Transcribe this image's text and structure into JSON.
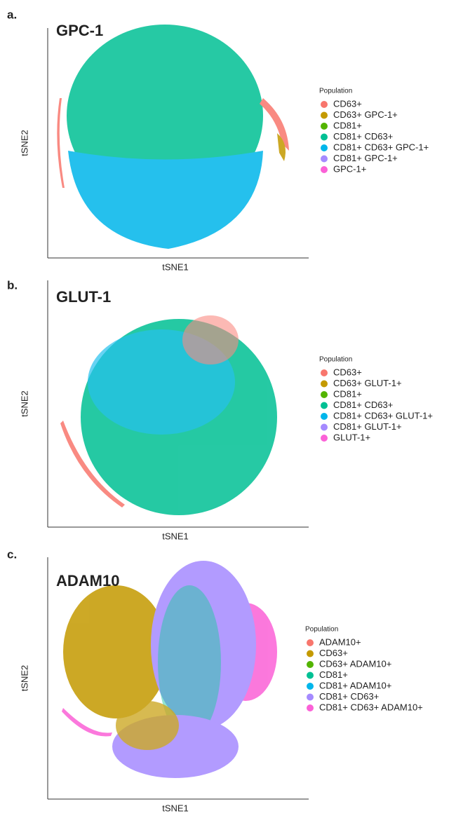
{
  "panels": [
    {
      "letter": "a.",
      "title": "GPC-1",
      "x_label": "tSNE1",
      "y_label": "tSNE2",
      "legend_title": "Population",
      "legend": [
        {
          "name": "CD63+",
          "color": "#F8766D"
        },
        {
          "name": "CD63+ GPC-1+",
          "color": "#C49A00"
        },
        {
          "name": "CD81+",
          "color": "#53B400"
        },
        {
          "name": "CD81+ CD63+",
          "color": "#00C094"
        },
        {
          "name": "CD81+ CD63+ GPC-1+",
          "color": "#00B6EB"
        },
        {
          "name": "CD81+ GPC-1+",
          "color": "#A58AFF"
        },
        {
          "name": "GPC-1+",
          "color": "#FB61D7"
        }
      ]
    },
    {
      "letter": "b.",
      "title": "GLUT-1",
      "x_label": "tSNE1",
      "y_label": "tSNE2",
      "legend_title": "Population",
      "legend": [
        {
          "name": "CD63+",
          "color": "#F8766D"
        },
        {
          "name": "CD63+ GLUT-1+",
          "color": "#C49A00"
        },
        {
          "name": "CD81+",
          "color": "#53B400"
        },
        {
          "name": "CD81+ CD63+",
          "color": "#00C094"
        },
        {
          "name": "CD81+ CD63+ GLUT-1+",
          "color": "#00B6EB"
        },
        {
          "name": "CD81+ GLUT-1+",
          "color": "#A58AFF"
        },
        {
          "name": "GLUT-1+",
          "color": "#FB61D7"
        }
      ]
    },
    {
      "letter": "c.",
      "title": "ADAM10",
      "x_label": "tSNE1",
      "y_label": "tSNE2",
      "legend_title": "Population",
      "legend": [
        {
          "name": "ADAM10+",
          "color": "#F8766D"
        },
        {
          "name": "CD63+",
          "color": "#C49A00"
        },
        {
          "name": "CD63+ ADAM10+",
          "color": "#53B400"
        },
        {
          "name": "CD81+",
          "color": "#00C094"
        },
        {
          "name": "CD81+ ADAM10+",
          "color": "#00B6EB"
        },
        {
          "name": "CD81+ CD63+",
          "color": "#A58AFF"
        },
        {
          "name": "CD81+ CD63+ ADAM10+",
          "color": "#FB61D7"
        }
      ]
    }
  ]
}
